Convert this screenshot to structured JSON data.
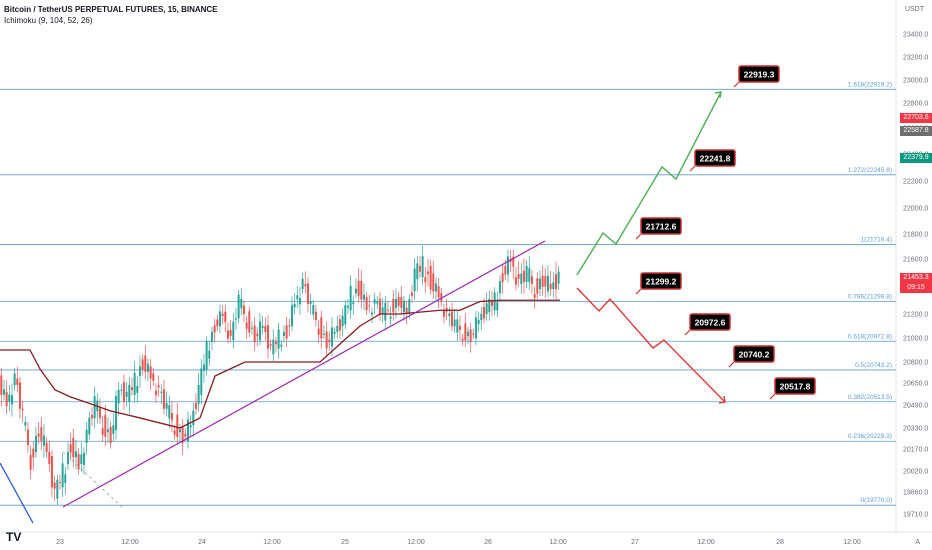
{
  "header": {
    "title": "Bitcoin / TetherUS PERPETUAL FUTURES, 15, BINANCE",
    "indicator": "Ichimoku (9, 104, 52, 26)"
  },
  "axis": {
    "currency": "USDT",
    "auto_label": "A",
    "logo_label": "TV"
  },
  "tags": {
    "t1": {
      "text": "22703.6",
      "color": "#f23645"
    },
    "t2": {
      "text": "22587.8",
      "color": "#6e6e6e"
    },
    "t3": {
      "text": "22379.9",
      "color": "#089981"
    },
    "t4": {
      "text": "21453.3",
      "color": "#f23645"
    },
    "t4b": {
      "text": "09:15",
      "color": "#f23645"
    }
  },
  "chart_data": {
    "type": "candlestick",
    "ylim": [
      19600,
      23600
    ],
    "y_ticks": [
      19710,
      19860,
      20020,
      20170,
      20330,
      20490,
      20650,
      20800,
      21000,
      21200,
      21400,
      21600,
      21800,
      22000,
      22200,
      22400,
      22600,
      22800,
      23000,
      23200,
      23400
    ],
    "y_tick_labels": [
      "19710.0",
      "19860.0",
      "20020.0",
      "20170.0",
      "20330.0",
      "20490.0",
      "20650.0",
      "20800.0",
      "21000.0",
      "21200.0",
      "21400.0",
      "21600.0",
      "21800.0",
      "22000.0",
      "22200.0",
      "22400.0",
      "22600.0",
      "22800.0",
      "23000.0",
      "23200.0",
      "23400.0"
    ],
    "x_ticks": [
      "23",
      "12:00",
      "24",
      "12:00",
      "25",
      "12:00",
      "26",
      "12:00",
      "27",
      "12:00",
      "28",
      "12:00"
    ],
    "fib_levels": [
      {
        "label": "1.618(22919.2)",
        "value": 22919.2
      },
      {
        "label": "1.272(22245.8)",
        "value": 22245.8
      },
      {
        "label": "1(21716.4)",
        "value": 21716.4
      },
      {
        "label": "0.786(21299.8)",
        "value": 21299.8
      },
      {
        "label": "0.618(20972.8)",
        "value": 20972.8
      },
      {
        "label": "0.5(20743.2)",
        "value": 20743.2
      },
      {
        "label": "0.382(20513.5)",
        "value": 20513.5
      },
      {
        "label": "0.236(20229.3)",
        "value": 20229.3
      },
      {
        "label": "0(19770.0)",
        "value": 19770.0
      }
    ],
    "bull_targets": [
      "21712.6",
      "22241.8",
      "22919.3"
    ],
    "bear_targets": [
      "21299.2",
      "20972.6",
      "20740.2",
      "20517.8"
    ],
    "colors": {
      "up": "#26a69a",
      "down": "#ef5350",
      "fib": "#5b9bd5",
      "trend": "#9c27b0",
      "kijun": "#8b1a1a",
      "bull_path": "#4caf50",
      "bear_path": "#e53935",
      "downtrend": "#1e4fd8"
    }
  }
}
